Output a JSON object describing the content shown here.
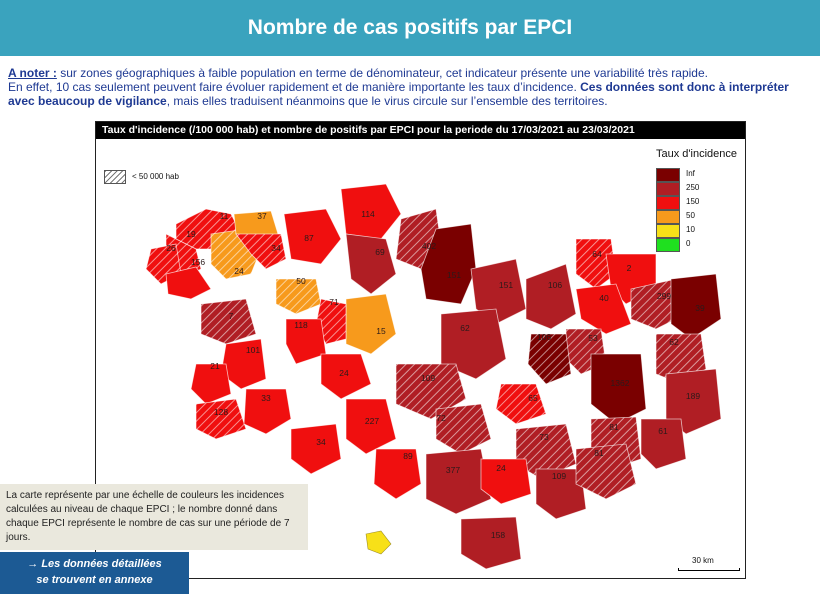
{
  "banner": {
    "title": "Nombre de cas positifs par EPCI"
  },
  "note": {
    "label": "A noter :",
    "line1": " sur zones géographiques à faible population en terme de dénominateur, cet indicateur présente une variabilité très rapide.",
    "line2a": "En effet, 10 cas seulement peuvent faire évoluer rapidement et de manière importante les taux d’incidence. ",
    "line2b": "Ces données sont donc à interpréter avec beaucoup de vigilance",
    "line2c": ", mais elles traduisent néanmoins que le virus circule sur l’ensemble des territoires."
  },
  "map": {
    "header": "Taux d'incidence (/100 000 hab) et nombre de positifs par EPCI pour la periode du 17/03/2021 au 23/03/2021",
    "hatch_label": "< 50 000 hab",
    "scale_label": "30 km",
    "colors": {
      "inf": "#7a0000",
      "c250": "#b01e24",
      "c150": "#f00f0f",
      "c50": "#f79a1c",
      "c10": "#f7e018",
      "c0": "#1fe01f",
      "sea": "#ffffff"
    },
    "legend": {
      "title": "Taux d'incidence",
      "items": [
        {
          "label": "Inf",
          "color": "#7a0000"
        },
        {
          "label": "250",
          "color": "#b01e24"
        },
        {
          "label": "150",
          "color": "#f00f0f"
        },
        {
          "label": "50",
          "color": "#f79a1c"
        },
        {
          "label": "10",
          "color": "#f7e018"
        },
        {
          "label": "0",
          "color": "#1fe01f"
        }
      ]
    },
    "epci_counts": [
      "11",
      "19",
      "26",
      "156",
      "24",
      "37",
      "34",
      "87",
      "114",
      "69",
      "402",
      "151",
      "151",
      "106",
      "64",
      "2",
      "50",
      "40",
      "299",
      "39",
      "7",
      "15",
      "71",
      "118",
      "62",
      "101",
      "21",
      "24",
      "53",
      "106",
      "62",
      "109",
      "128",
      "1362",
      "189",
      "33",
      "65",
      "227",
      "72",
      "81",
      "73",
      "61",
      "34",
      "89",
      "377",
      "24",
      "109",
      "158",
      "81"
    ]
  },
  "info": {
    "text": "La carte représente par une échelle de couleurs les incidences calculées au niveau de chaque EPCI ; le nombre donné dans chaque EPCI représente le nombre de cas sur une période de 7 jours."
  },
  "annexe": {
    "arrow": "→",
    "line1": "Les données détaillées",
    "line2": "se trouvent en annexe"
  }
}
